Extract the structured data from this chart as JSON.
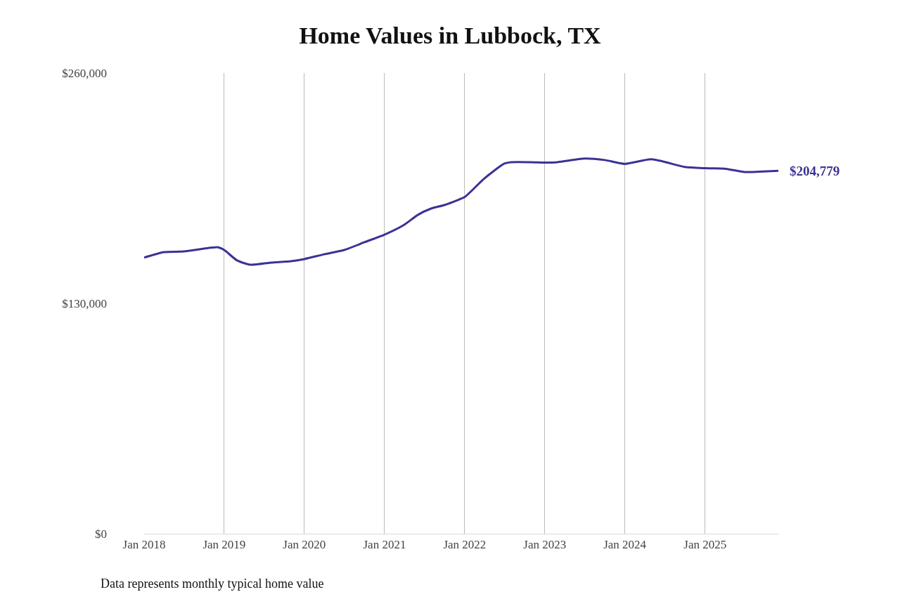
{
  "chart_data": {
    "type": "line",
    "title": "Home Values in Lubbock, TX",
    "x": [
      "2018-01",
      "2018-04",
      "2018-07",
      "2018-10",
      "2018-12",
      "2019-01",
      "2019-03",
      "2019-05",
      "2019-08",
      "2019-11",
      "2020-01",
      "2020-04",
      "2020-07",
      "2020-10",
      "2021-01",
      "2021-04",
      "2021-06",
      "2021-08",
      "2021-10",
      "2021-12",
      "2022-01",
      "2022-04",
      "2022-07",
      "2022-08",
      "2022-11",
      "2023-01",
      "2023-03",
      "2023-07",
      "2023-10",
      "2024-01",
      "2024-05",
      "2024-10",
      "2025-01",
      "2025-04",
      "2025-07",
      "2025-09",
      "2025-12"
    ],
    "series": [
      {
        "color": "#3a3294",
        "values": [
          155800,
          158900,
          159300,
          160900,
          161700,
          160100,
          154200,
          151800,
          153000,
          153800,
          155000,
          157700,
          160100,
          164500,
          168800,
          174400,
          179900,
          183500,
          185500,
          188300,
          190000,
          200500,
          208900,
          209700,
          209700,
          209500,
          209700,
          211700,
          210900,
          208700,
          211300,
          207000,
          206300,
          206000,
          204100,
          204300,
          204779
        ]
      }
    ],
    "xticks": [
      {
        "value": "2018-01-01",
        "label": "Jan 2018"
      },
      {
        "value": "2019-01-01",
        "label": "Jan 2019"
      },
      {
        "value": "2020-01-01",
        "label": "Jan 2020"
      },
      {
        "value": "2021-01-01",
        "label": "Jan 2021"
      },
      {
        "value": "2022-01-01",
        "label": "Jan 2022"
      },
      {
        "value": "2023-01-01",
        "label": "Jan 2023"
      },
      {
        "value": "2024-01-01",
        "label": "Jan 2024"
      },
      {
        "value": "2025-01-01",
        "label": "Jan 2025"
      }
    ],
    "ylim": [
      0,
      260000
    ],
    "yticks": [
      {
        "value": 0,
        "label": "$0"
      },
      {
        "value": 130000,
        "label": "$130,000"
      },
      {
        "value": 260000,
        "label": "$260,000"
      }
    ],
    "xlim": [
      "2018-01",
      "2025-12"
    ],
    "grid": "x",
    "annotations": [
      {
        "text": "$204,779",
        "x": "2025-12",
        "y": 204779
      },
      "Data represents monthly typical home value"
    ]
  }
}
